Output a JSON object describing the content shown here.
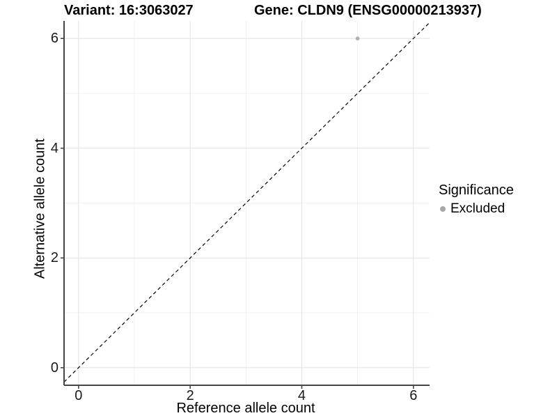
{
  "chart_data": {
    "type": "scatter",
    "title_variant": "Variant: 16:3063027",
    "title_gene": "Gene: CLDN9 (ENSG00000213937)",
    "xlabel": "Reference allele count",
    "ylabel": "Alternative allele count",
    "x_ticks": [
      0,
      2,
      4,
      6
    ],
    "y_ticks": [
      0,
      2,
      4,
      6
    ],
    "minor_ticks": [
      1,
      3,
      5
    ],
    "xlim": [
      -0.26,
      6.29
    ],
    "ylim": [
      -0.32,
      6.32
    ],
    "grid": "major and minor gridlines, light gray on white panel",
    "points": [
      {
        "x": 5,
        "y": 6,
        "significance": "Excluded"
      }
    ],
    "reference_line": {
      "style": "dashed",
      "slope": 1,
      "intercept": 0
    },
    "legend": {
      "title": "Significance",
      "position": "right",
      "items": [
        {
          "label": "Excluded",
          "color": "#a8a8a8",
          "marker": "circle"
        }
      ]
    },
    "colors": {
      "point": "#b0b0b0",
      "grid_major": "#e4e4e4",
      "grid_minor": "#f0f0f0",
      "axis": "#464646",
      "dashed_line": "#000000",
      "background": "#ffffff"
    }
  }
}
